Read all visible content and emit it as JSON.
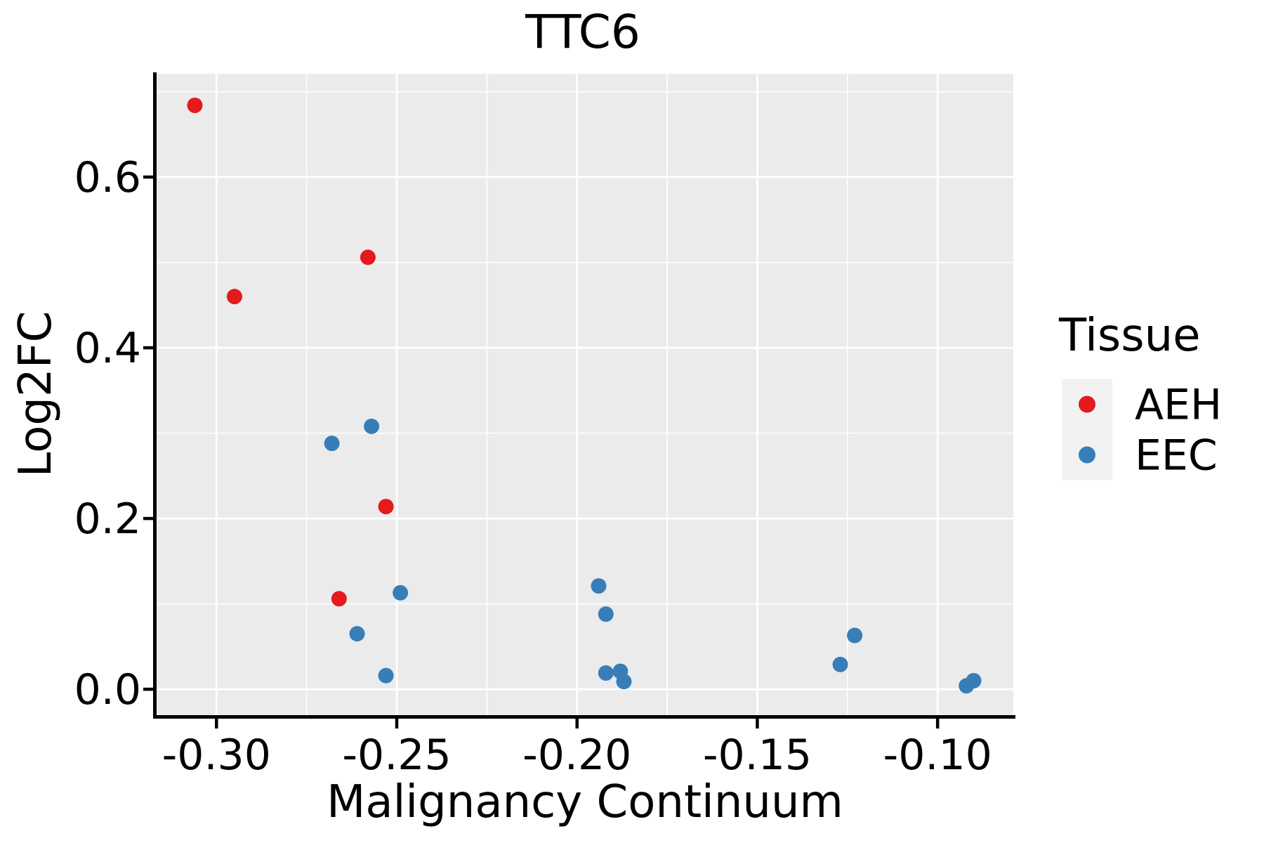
{
  "chart_data": {
    "type": "scatter",
    "title": "TTC6",
    "xlabel": "Malignancy Continuum",
    "ylabel": "Log2FC",
    "xlim": [
      -0.317,
      -0.079
    ],
    "ylim": [
      -0.032,
      0.721
    ],
    "x_ticks": {
      "values": [
        -0.3,
        -0.25,
        -0.2,
        -0.15,
        -0.1
      ],
      "labels": [
        "-0.30",
        "-0.25",
        "-0.20",
        "-0.15",
        "-0.10"
      ]
    },
    "y_ticks": {
      "values": [
        0.0,
        0.2,
        0.4,
        0.6
      ],
      "labels": [
        "0.0",
        "0.2",
        "0.4",
        "0.6"
      ]
    },
    "x_minor_ticks": [
      -0.275,
      -0.225,
      -0.175,
      -0.125
    ],
    "y_minor_ticks": [
      0.1,
      0.3,
      0.5,
      0.7
    ],
    "grid": true,
    "legend_position": "right",
    "point_radius_px": 11,
    "series": [
      {
        "name": "AEH",
        "color": "#E41A1C",
        "points": [
          [
            -0.306,
            0.684
          ],
          [
            -0.295,
            0.46
          ],
          [
            -0.258,
            0.506
          ],
          [
            -0.253,
            0.214
          ],
          [
            -0.266,
            0.106
          ]
        ]
      },
      {
        "name": "EEC",
        "color": "#377EB8",
        "points": [
          [
            -0.268,
            0.288
          ],
          [
            -0.257,
            0.308
          ],
          [
            -0.249,
            0.113
          ],
          [
            -0.261,
            0.065
          ],
          [
            -0.253,
            0.016
          ],
          [
            -0.194,
            0.121
          ],
          [
            -0.192,
            0.088
          ],
          [
            -0.192,
            0.019
          ],
          [
            -0.188,
            0.021
          ],
          [
            -0.187,
            0.009
          ],
          [
            -0.127,
            0.029
          ],
          [
            -0.123,
            0.063
          ],
          [
            -0.092,
            0.004
          ],
          [
            -0.09,
            0.01
          ]
        ]
      }
    ]
  },
  "legend": {
    "title": "Tissue",
    "items": [
      {
        "label": "AEH",
        "color": "#E41A1C"
      },
      {
        "label": "EEC",
        "color": "#377EB8"
      }
    ]
  },
  "colors": {
    "background": "#FFFFFF",
    "panel_bg": "#EBEBEB",
    "grid": "#FFFFFF",
    "axis": "#000000",
    "text": "#000000",
    "legend_key_bg": "#F2F2F2"
  }
}
